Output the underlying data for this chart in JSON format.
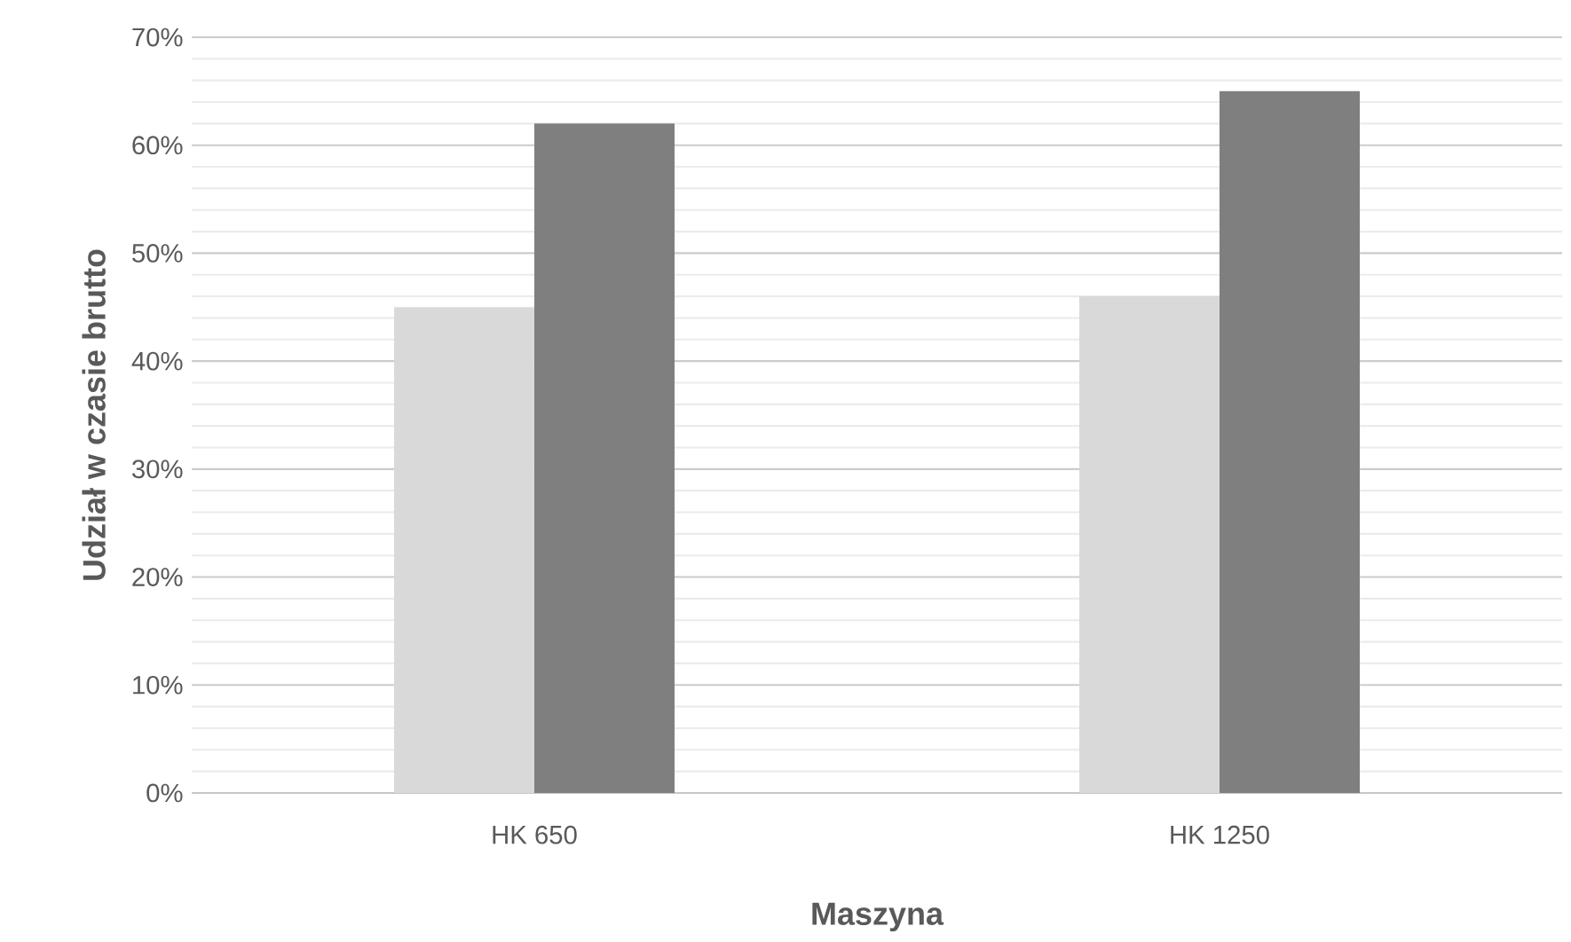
{
  "chart_data": {
    "type": "bar",
    "xlabel": "Maszyna",
    "ylabel": "Udział w czasie brutto",
    "categories": [
      "HK 650",
      "HK 1250"
    ],
    "series": [
      {
        "color": "#d9d9d9",
        "values": [
          45,
          46
        ]
      },
      {
        "color": "#7f7f7f",
        "values": [
          62,
          65
        ]
      }
    ],
    "ylim": [
      0,
      70
    ],
    "yticks": [
      {
        "value": 0,
        "label": "0%"
      },
      {
        "value": 10,
        "label": "10%"
      },
      {
        "value": 20,
        "label": "20%"
      },
      {
        "value": 30,
        "label": "30%"
      },
      {
        "value": 40,
        "label": "40%"
      },
      {
        "value": 50,
        "label": "50%"
      },
      {
        "value": 60,
        "label": "60%"
      },
      {
        "value": 70,
        "label": "70%"
      }
    ],
    "grid": "y"
  }
}
